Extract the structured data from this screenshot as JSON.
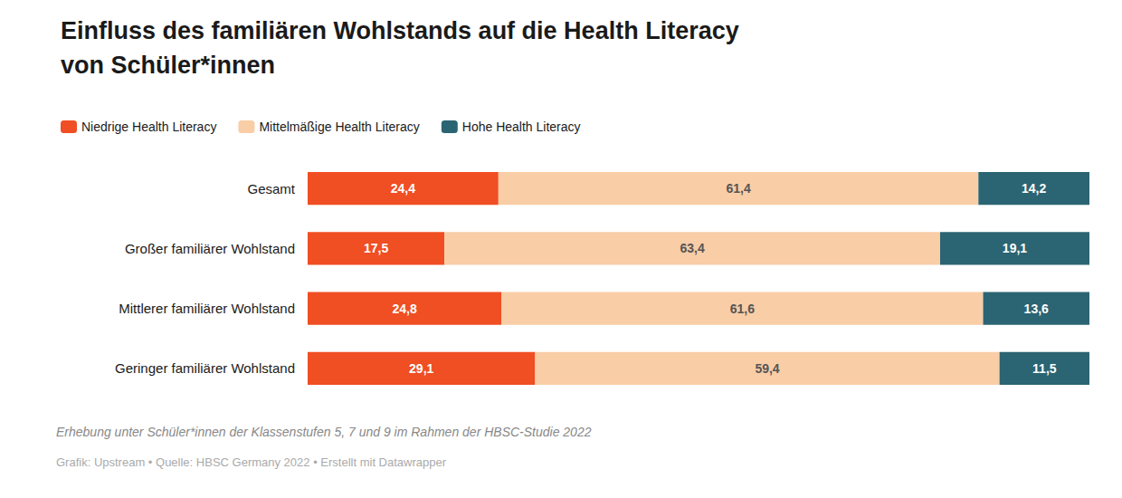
{
  "chart_data": {
    "type": "bar",
    "orientation": "horizontal",
    "stacked": true,
    "title": "Einfluss des familiären Wohlstands auf die Health Literacy\nvon Schüler*innen",
    "categories": [
      "Gesamt",
      "Großer familiärer Wohlstand",
      "Mittlerer familiärer Wohlstand",
      "Geringer familiärer Wohlstand"
    ],
    "series": [
      {
        "name": "Niedrige Health Literacy",
        "color": "#f04e23",
        "values": [
          24.4,
          17.5,
          24.8,
          29.1
        ],
        "value_labels": [
          "24,4",
          "17,5",
          "24,8",
          "29,1"
        ]
      },
      {
        "name": "Mittelmäßige Health Literacy",
        "color": "#f9cda6",
        "values": [
          61.4,
          63.4,
          61.6,
          59.4
        ],
        "value_labels": [
          "61,4",
          "63,4",
          "61,6",
          "59,4"
        ]
      },
      {
        "name": "Hohe Health Literacy",
        "color": "#2b6472",
        "values": [
          14.2,
          19.1,
          13.6,
          11.5
        ],
        "value_labels": [
          "14,2",
          "19,1",
          "13,6",
          "11,5"
        ]
      }
    ],
    "xlim": [
      0,
      100
    ],
    "data_labels": true,
    "tick_labels": "y",
    "grid": false,
    "legend": "upper left",
    "annotations": [
      "Erhebung unter Schüler*innen der Klassenstufen 5, 7 und 9 im Rahmen der HBSC-Studie 2022",
      "Grafik: Upstream • Quelle: HBSC Germany 2022 • Erstellt mit Datawrapper"
    ]
  }
}
